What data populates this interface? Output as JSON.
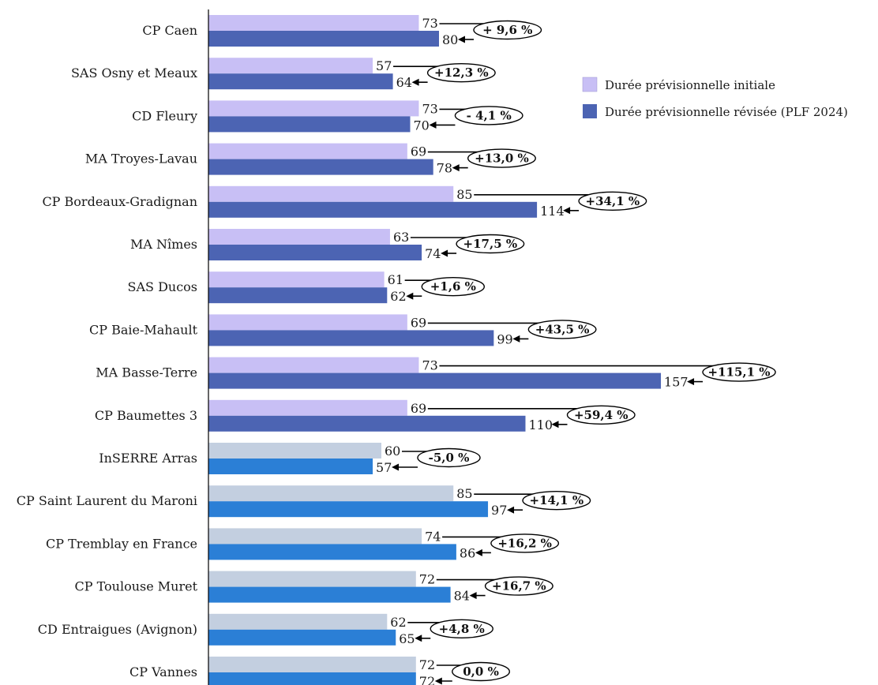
{
  "chart_data": {
    "type": "bar",
    "orientation": "horizontal",
    "title": "",
    "xlabel": "",
    "ylabel": "",
    "grid": false,
    "legend_position": "top-right",
    "categories": [
      "CP Caen",
      "SAS Osny et Meaux",
      "CD Fleury",
      "MA Troyes-Lavau",
      "CP Bordeaux-Gradignan",
      "MA Nîmes",
      "SAS Ducos",
      "CP Baie-Mahault",
      "MA Basse-Terre",
      "CP Baumettes 3",
      "InSERRE Arras",
      "CP Saint Laurent du Maroni",
      "CP Tremblay en France",
      "CP Toulouse Muret",
      "CD Entraigues (Avignon)",
      "CP Vannes"
    ],
    "series": [
      {
        "name": "Durée prévisionnelle initiale",
        "values": [
          73,
          57,
          73,
          69,
          85,
          63,
          61,
          69,
          73,
          69,
          60,
          85,
          74,
          72,
          62,
          72
        ]
      },
      {
        "name": "Durée prévisionnelle révisée (PLF 2024)",
        "values": [
          80,
          64,
          70,
          78,
          114,
          74,
          62,
          99,
          157,
          110,
          57,
          97,
          86,
          84,
          65,
          72
        ]
      }
    ],
    "changes": [
      "+ 9,6 %",
      "+12,3 %",
      "- 4,1 %",
      "+13,0 %",
      "+34,1 %",
      "+17,5 %",
      "+1,6 %",
      "+43,5 %",
      "+115,1 %",
      "+59,4 %",
      "-5,0 %",
      "+14,1 %",
      "+16,2 %",
      "+16,7 %",
      "+4,8 %",
      "0,0 %"
    ],
    "colors": {
      "initial_group_a": "#c8bff5",
      "revised_group_a": "#4c64b3",
      "initial_group_b": "#c3cfe0",
      "revised_group_b": "#2b7fd6"
    },
    "group_b_start_index": 10,
    "xlim": [
      0,
      160
    ]
  }
}
